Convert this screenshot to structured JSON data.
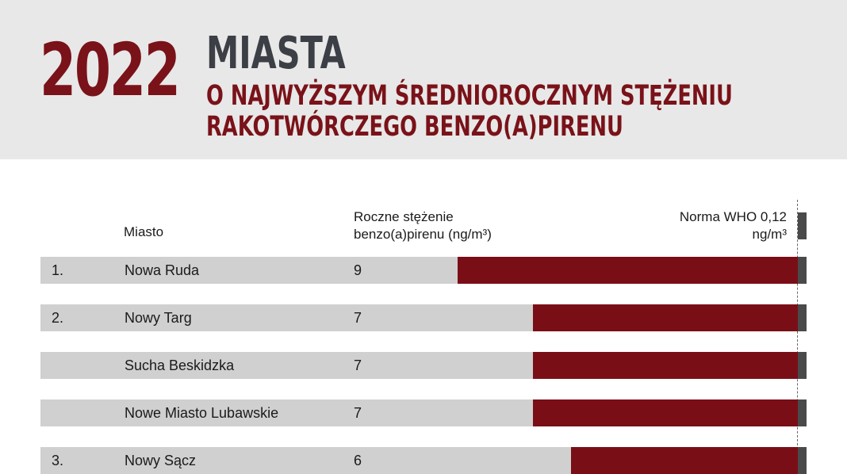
{
  "header": {
    "year": "2022",
    "title_main": "MIASTA",
    "title_sub_line1": "O NAJWYŻSZYM ŚREDNIOROCZNYM STĘŻENIU",
    "title_sub_line2": "RAKOTWÓRCZEGO BENZO(A)PIRENU"
  },
  "colors": {
    "header_bg": "#e8e8e8",
    "accent": "#7a1219",
    "bar": "#7a0e16",
    "row_bg": "#d0d0d0",
    "who_marker": "#4a4a4a"
  },
  "chart_data": {
    "type": "bar",
    "orientation": "horizontal",
    "column_headers": {
      "city": "Miasto",
      "value_line1": "Roczne stężenie",
      "value_line2": "benzo(a)pirenu (ng/m³)",
      "who_line1": "Norma WHO 0,12",
      "who_line2": "ng/m³"
    },
    "reference_line": {
      "label": "Norma WHO 0,12 ng/m³",
      "value": 0.12
    },
    "xlim": [
      0,
      9
    ],
    "rows": [
      {
        "rank": "1.",
        "city": "Nowa Ruda",
        "value_label": "9",
        "value": 9
      },
      {
        "rank": "2.",
        "city": "Nowy Targ",
        "value_label": "7",
        "value": 7
      },
      {
        "rank": "",
        "city": "Sucha Beskidzka",
        "value_label": "7",
        "value": 7
      },
      {
        "rank": "",
        "city": "Nowe Miasto Lubawskie",
        "value_label": "7",
        "value": 7
      },
      {
        "rank": "3.",
        "city": "Nowy Sącz",
        "value_label": "6",
        "value": 6
      }
    ]
  }
}
